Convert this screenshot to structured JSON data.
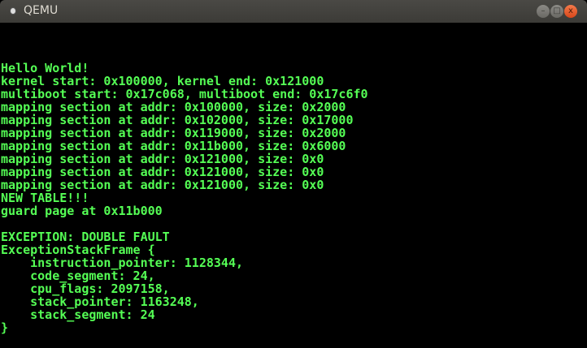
{
  "window": {
    "title": "QEMU",
    "minimize_label": "–",
    "maximize_label": "□",
    "close_label": "x"
  },
  "console": {
    "text_color": "#55ff55",
    "lines": [
      "Hello World!",
      "kernel start: 0x100000, kernel end: 0x121000",
      "multiboot start: 0x17c068, multiboot end: 0x17c6f0",
      "mapping section at addr: 0x100000, size: 0x2000",
      "mapping section at addr: 0x102000, size: 0x17000",
      "mapping section at addr: 0x119000, size: 0x2000",
      "mapping section at addr: 0x11b000, size: 0x6000",
      "mapping section at addr: 0x121000, size: 0x0",
      "mapping section at addr: 0x121000, size: 0x0",
      "mapping section at addr: 0x121000, size: 0x0",
      "NEW TABLE!!!",
      "guard page at 0x11b000",
      "",
      "EXCEPTION: DOUBLE FAULT",
      "ExceptionStackFrame {",
      "    instruction_pointer: 1128344,",
      "    code_segment: 24,",
      "    cpu_flags: 2097158,",
      "    stack_pointer: 1163248,",
      "    stack_segment: 24",
      "}"
    ]
  }
}
